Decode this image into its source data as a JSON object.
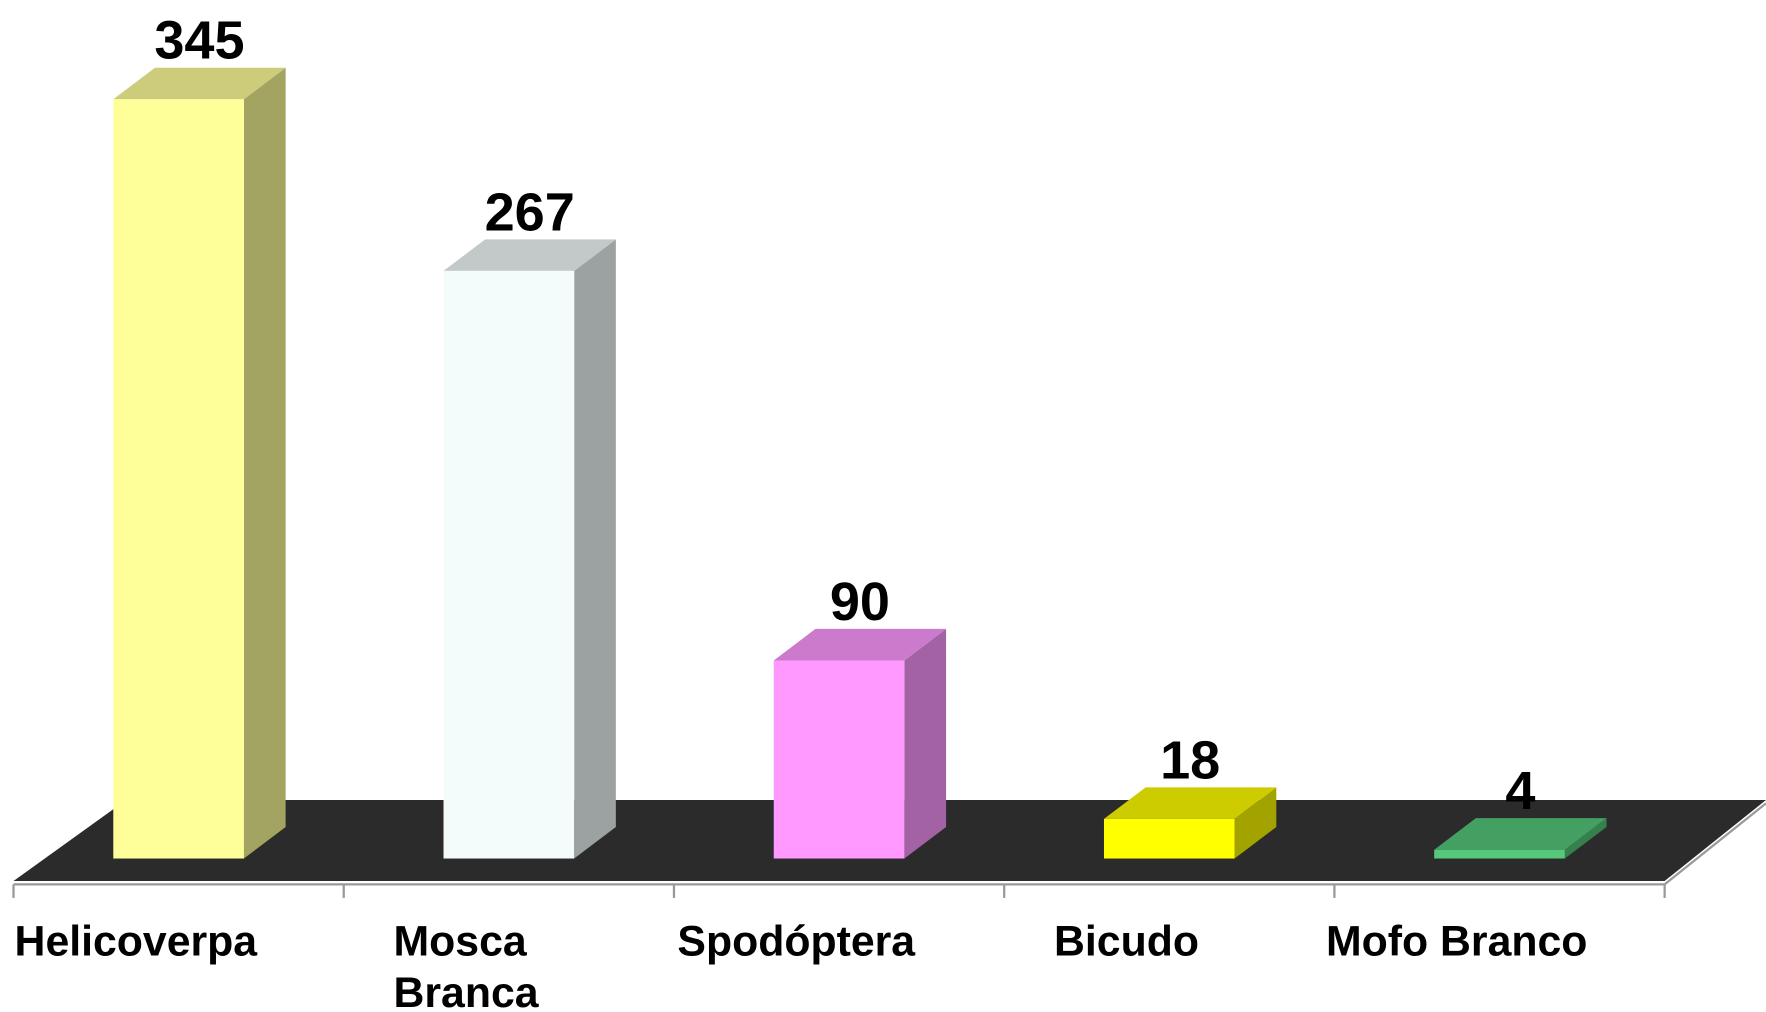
{
  "chart_data": {
    "type": "bar3d",
    "categories": [
      "Helicoverpa",
      "Mosca Branca",
      "Spodóptera",
      "Bicudo",
      "Mofo Branco"
    ],
    "values": [
      345,
      267,
      90,
      18,
      4
    ],
    "colors": [
      "#ffff99",
      "#f4fbfb",
      "#ff99ff",
      "#ffff00",
      "#55c87a"
    ]
  }
}
